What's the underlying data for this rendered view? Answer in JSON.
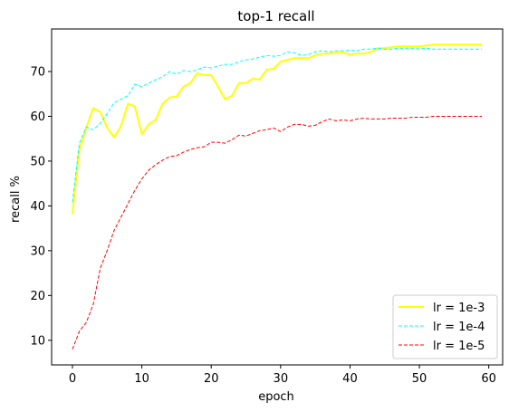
{
  "chart_data": {
    "type": "line",
    "title": "top-1 recall",
    "xlabel": "epoch",
    "ylabel": "recall %",
    "xlim": [
      -3,
      62
    ],
    "ylim": [
      4.5,
      79.5
    ],
    "xticks": [
      0,
      10,
      20,
      30,
      40,
      50,
      60
    ],
    "yticks": [
      10,
      20,
      30,
      40,
      50,
      60,
      70
    ],
    "grid": false,
    "legend_position": "lower-right",
    "x": [
      0,
      1,
      2,
      3,
      4,
      5,
      6,
      7,
      8,
      9,
      10,
      11,
      12,
      13,
      14,
      15,
      16,
      17,
      18,
      19,
      20,
      21,
      22,
      23,
      24,
      25,
      26,
      27,
      28,
      29,
      30,
      31,
      32,
      33,
      34,
      35,
      36,
      37,
      38,
      39,
      40,
      41,
      42,
      43,
      44,
      45,
      46,
      47,
      48,
      49,
      50,
      51,
      52,
      53,
      54,
      55,
      56,
      57,
      58,
      59
    ],
    "series": [
      {
        "name": "lr = 1e-3",
        "color": "#ffff00",
        "line_style": "solid",
        "values": [
          38.2,
          52.5,
          57.5,
          61.8,
          61.0,
          57.5,
          55.3,
          57.8,
          62.8,
          62.2,
          56.0,
          58.2,
          59.2,
          62.8,
          64.2,
          64.4,
          66.6,
          67.4,
          69.6,
          69.2,
          69.2,
          66.6,
          63.8,
          64.6,
          67.4,
          67.4,
          68.4,
          68.2,
          70.4,
          70.6,
          72.2,
          72.6,
          73.0,
          73.0,
          73.0,
          73.6,
          74.0,
          74.0,
          74.2,
          74.2,
          73.8,
          74.0,
          74.0,
          74.4,
          75.2,
          75.2,
          75.4,
          75.6,
          75.6,
          75.6,
          75.6,
          75.8,
          76.0,
          76.0,
          76.0,
          76.0,
          76.0,
          76.0,
          76.0,
          76.0
        ]
      },
      {
        "name": "lr = 1e-4",
        "color": "#00ffff",
        "line_style": "dashed",
        "values": [
          40.8,
          54.0,
          57.6,
          57.0,
          58.4,
          60.6,
          63.0,
          63.8,
          64.6,
          67.2,
          66.6,
          67.4,
          68.2,
          68.8,
          70.0,
          69.4,
          70.2,
          70.0,
          70.4,
          71.0,
          70.8,
          71.2,
          71.6,
          71.6,
          72.2,
          72.6,
          72.8,
          73.2,
          73.6,
          73.4,
          73.6,
          74.4,
          74.2,
          73.6,
          73.8,
          74.4,
          74.6,
          74.4,
          74.6,
          74.6,
          74.8,
          74.6,
          75.0,
          75.0,
          75.2,
          75.0,
          75.0,
          75.2,
          75.2,
          75.2,
          75.0,
          75.2,
          75.0,
          75.0,
          75.0,
          75.0,
          75.0,
          75.0,
          75.0,
          75.0
        ]
      },
      {
        "name": "lr = 1e-5",
        "color": "#ff0000",
        "line_style": "dashed",
        "values": [
          8.0,
          12.0,
          14.0,
          18.0,
          26.0,
          30.0,
          34.5,
          37.5,
          40.5,
          43.5,
          46.0,
          48.0,
          49.2,
          50.2,
          51.0,
          51.2,
          52.0,
          52.6,
          53.0,
          53.2,
          54.2,
          54.2,
          54.0,
          54.8,
          55.8,
          55.6,
          56.2,
          56.8,
          57.0,
          57.4,
          56.6,
          57.6,
          58.2,
          58.2,
          57.8,
          58.0,
          58.8,
          59.4,
          59.0,
          59.2,
          59.0,
          59.4,
          59.6,
          59.4,
          59.4,
          59.4,
          59.6,
          59.6,
          59.6,
          59.8,
          59.8,
          59.8,
          60.0,
          60.0,
          60.0,
          60.0,
          60.0,
          60.0,
          60.0,
          60.0
        ]
      }
    ]
  }
}
